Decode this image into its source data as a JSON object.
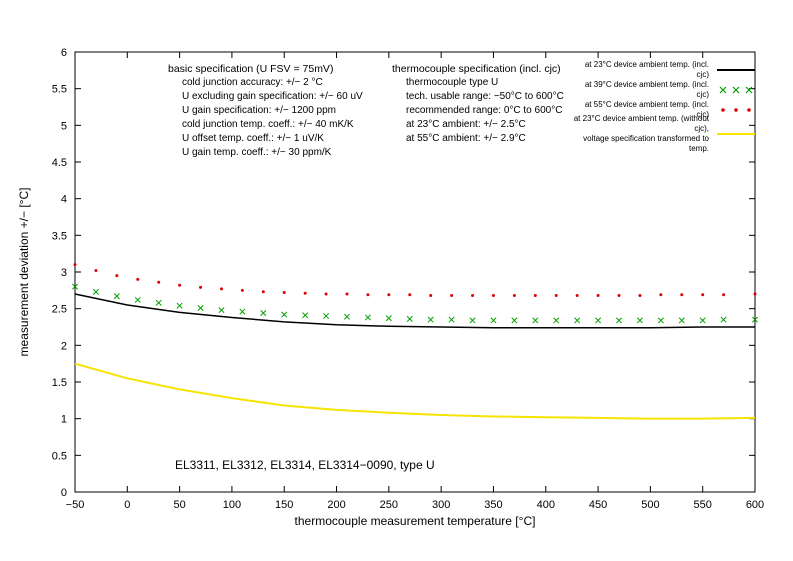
{
  "chart": {
    "type": "line",
    "background_color": "#ffffff",
    "xlabel": "thermocouple measurement temperature [°C]",
    "ylabel": "measurement deviation +/− [°C]",
    "label_fontsize": 12,
    "tick_fontsize": 11,
    "xlim": [
      -50,
      600
    ],
    "ylim": [
      0,
      6
    ],
    "xtick_step": 50,
    "ytick_step": 0.5,
    "xticks": [
      -50,
      0,
      50,
      100,
      150,
      200,
      250,
      300,
      350,
      400,
      450,
      500,
      550,
      600
    ],
    "yticks": [
      0,
      0.5,
      1,
      1.5,
      2,
      2.5,
      3,
      3.5,
      4,
      4.5,
      5,
      5.5,
      6
    ],
    "series": [
      {
        "name": "black",
        "label": "at 23°C device ambient temp. (incl. cjc)",
        "color": "#000000",
        "style": "line",
        "line_width": 1.5,
        "x": [
          -50,
          0,
          50,
          100,
          150,
          200,
          250,
          300,
          350,
          400,
          450,
          500,
          550,
          600
        ],
        "y": [
          2.7,
          2.55,
          2.45,
          2.38,
          2.32,
          2.28,
          2.26,
          2.25,
          2.24,
          2.24,
          2.24,
          2.24,
          2.25,
          2.25
        ]
      },
      {
        "name": "green",
        "label": "at 39°C device ambient temp. (incl. cjc)",
        "color": "#00a000",
        "style": "marker",
        "marker": "x",
        "marker_size": 4,
        "x": [
          -50,
          -30,
          -10,
          10,
          30,
          50,
          70,
          90,
          110,
          130,
          150,
          170,
          190,
          210,
          230,
          250,
          270,
          290,
          310,
          330,
          350,
          370,
          390,
          410,
          430,
          450,
          470,
          490,
          510,
          530,
          550,
          570,
          600
        ],
        "y": [
          2.8,
          2.73,
          2.67,
          2.62,
          2.58,
          2.54,
          2.51,
          2.48,
          2.46,
          2.44,
          2.42,
          2.41,
          2.4,
          2.39,
          2.38,
          2.37,
          2.36,
          2.35,
          2.35,
          2.34,
          2.34,
          2.34,
          2.34,
          2.34,
          2.34,
          2.34,
          2.34,
          2.34,
          2.34,
          2.34,
          2.34,
          2.35,
          2.35
        ]
      },
      {
        "name": "red",
        "label": "at 55°C device ambient temp. (incl. cjc)",
        "color": "#e00000",
        "style": "marker",
        "marker": "dot",
        "marker_size": 3,
        "x": [
          -50,
          -30,
          -10,
          10,
          30,
          50,
          70,
          90,
          110,
          130,
          150,
          170,
          190,
          210,
          230,
          250,
          270,
          290,
          310,
          330,
          350,
          370,
          390,
          410,
          430,
          450,
          470,
          490,
          510,
          530,
          550,
          570,
          600
        ],
        "y": [
          3.1,
          3.02,
          2.95,
          2.9,
          2.86,
          2.82,
          2.79,
          2.77,
          2.75,
          2.73,
          2.72,
          2.71,
          2.7,
          2.7,
          2.69,
          2.69,
          2.69,
          2.68,
          2.68,
          2.68,
          2.68,
          2.68,
          2.68,
          2.68,
          2.68,
          2.68,
          2.68,
          2.68,
          2.69,
          2.69,
          2.69,
          2.69,
          2.7
        ]
      },
      {
        "name": "yellow",
        "label": "at 23°C device ambient temp. (without cjc), voltage specification transformed to temp.",
        "color": "#f5e400",
        "style": "line",
        "line_width": 2,
        "x": [
          -50,
          0,
          50,
          100,
          150,
          200,
          250,
          300,
          350,
          400,
          450,
          500,
          550,
          600
        ],
        "y": [
          1.75,
          1.55,
          1.4,
          1.28,
          1.18,
          1.12,
          1.08,
          1.05,
          1.03,
          1.02,
          1.01,
          1.0,
          1.0,
          1.01
        ]
      }
    ]
  },
  "spec_left": {
    "title": "basic specification (U FSV = 75mV)",
    "lines": [
      "cold junction accuracy: +/− 2 °C",
      "U excluding gain specification: +/− 60 uV",
      "U gain specification: +/− 1200 ppm",
      "cold junction temp. coeff.: +/− 40 mK/K",
      "U offset temp. coeff.: +/− 1 uV/K",
      "U gain temp. coeff.: +/− 30 ppm/K"
    ]
  },
  "spec_right": {
    "title": "thermocouple specification (incl. cjc)",
    "lines": [
      "thermocouple type U",
      "tech. usable range: −50°C to 600°C",
      "recommended range: 0°C to 600°C",
      "at 23°C ambient: +/− 2.5°C",
      "at 55°C ambient: +/− 2.9°C"
    ]
  },
  "legend": {
    "items": [
      {
        "label": "at 23°C device ambient temp. (incl. cjc)",
        "color": "#000000",
        "type": "line"
      },
      {
        "label": "at 39°C device ambient temp. (incl. cjc)",
        "color": "#00a000",
        "type": "x"
      },
      {
        "label": "at 55°C device ambient temp. (incl. cjc)",
        "color": "#e00000",
        "type": "dot"
      },
      {
        "label": "at 23°C device ambient temp. (without cjc),\nvoltage specification transformed to temp.",
        "color": "#f5e400",
        "type": "line"
      }
    ]
  },
  "footer": "EL3311, EL3312, EL3314, EL3314−0090, type U"
}
